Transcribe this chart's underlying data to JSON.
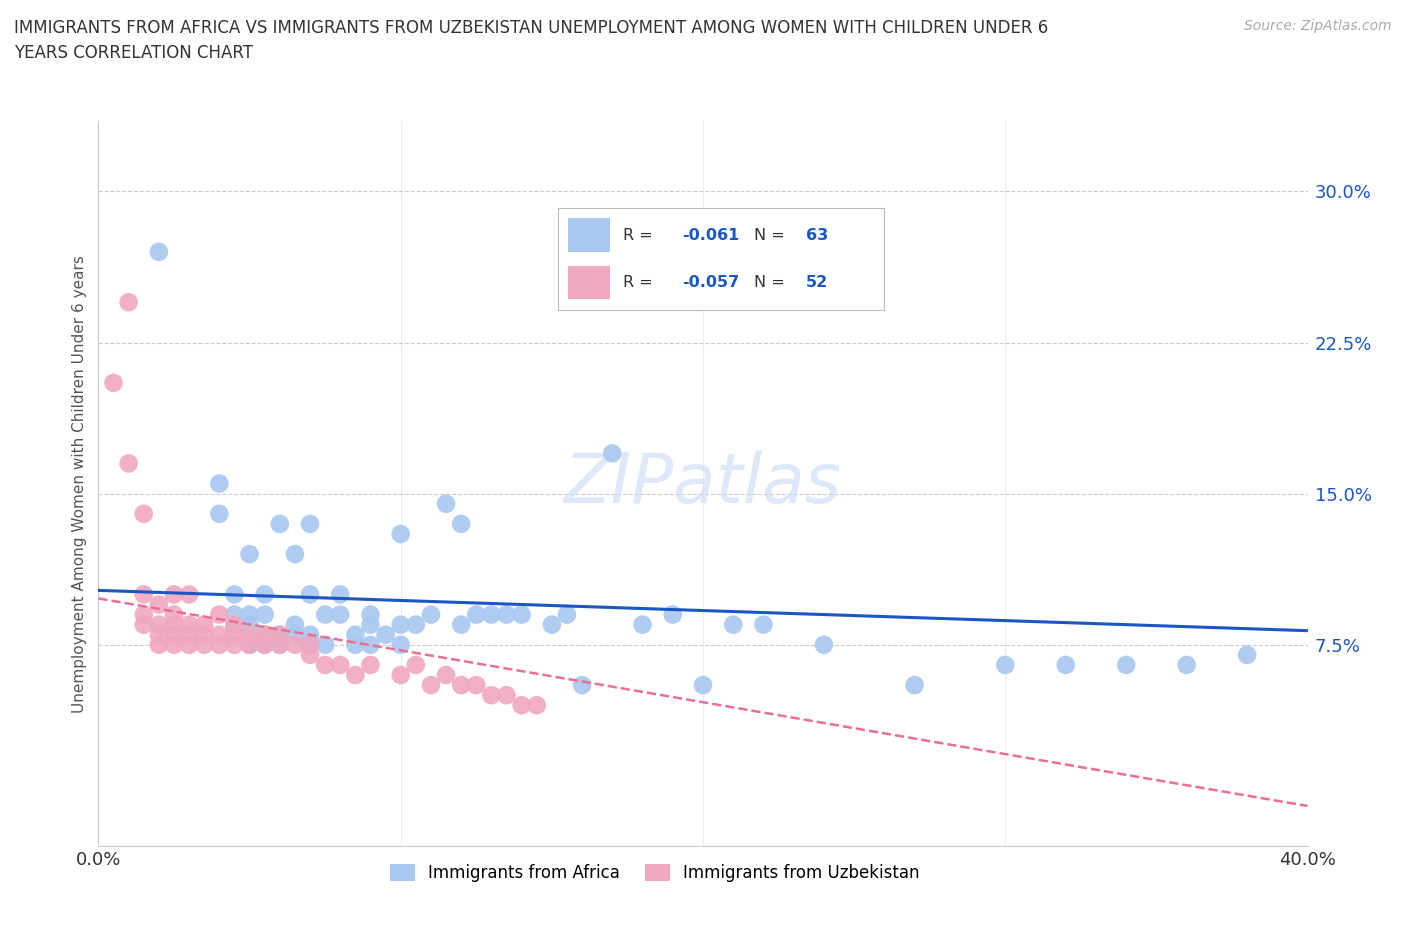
{
  "title": "IMMIGRANTS FROM AFRICA VS IMMIGRANTS FROM UZBEKISTAN UNEMPLOYMENT AMONG WOMEN WITH CHILDREN UNDER 6\nYEARS CORRELATION CHART",
  "source": "Source: ZipAtlas.com",
  "ylabel": "Unemployment Among Women with Children Under 6 years",
  "yticks": [
    0.075,
    0.15,
    0.225,
    0.3
  ],
  "ytick_labels": [
    "7.5%",
    "15.0%",
    "22.5%",
    "30.0%"
  ],
  "xlim": [
    0.0,
    0.4
  ],
  "ylim": [
    -0.025,
    0.335
  ],
  "africa_color": "#a8c8f0",
  "uzbekistan_color": "#f0a8c0",
  "africa_trend_color": "#1a56c4",
  "uzbekistan_trend_color": "#e87090",
  "watermark": "ZIPatlas",
  "africa_x": [
    0.02,
    0.04,
    0.04,
    0.045,
    0.045,
    0.045,
    0.05,
    0.05,
    0.05,
    0.05,
    0.05,
    0.055,
    0.055,
    0.055,
    0.055,
    0.06,
    0.06,
    0.06,
    0.065,
    0.065,
    0.065,
    0.07,
    0.07,
    0.07,
    0.07,
    0.075,
    0.075,
    0.08,
    0.08,
    0.085,
    0.085,
    0.09,
    0.09,
    0.09,
    0.095,
    0.1,
    0.1,
    0.1,
    0.105,
    0.11,
    0.115,
    0.12,
    0.12,
    0.125,
    0.13,
    0.135,
    0.14,
    0.15,
    0.155,
    0.16,
    0.17,
    0.18,
    0.19,
    0.2,
    0.21,
    0.22,
    0.24,
    0.27,
    0.3,
    0.32,
    0.34,
    0.36,
    0.38
  ],
  "africa_y": [
    0.27,
    0.14,
    0.155,
    0.085,
    0.09,
    0.1,
    0.075,
    0.08,
    0.085,
    0.09,
    0.12,
    0.075,
    0.08,
    0.09,
    0.1,
    0.075,
    0.08,
    0.135,
    0.08,
    0.085,
    0.12,
    0.075,
    0.08,
    0.1,
    0.135,
    0.075,
    0.09,
    0.09,
    0.1,
    0.075,
    0.08,
    0.075,
    0.085,
    0.09,
    0.08,
    0.075,
    0.085,
    0.13,
    0.085,
    0.09,
    0.145,
    0.085,
    0.135,
    0.09,
    0.09,
    0.09,
    0.09,
    0.085,
    0.09,
    0.055,
    0.17,
    0.085,
    0.09,
    0.055,
    0.085,
    0.085,
    0.075,
    0.055,
    0.065,
    0.065,
    0.065,
    0.065,
    0.07
  ],
  "uzbekistan_x": [
    0.005,
    0.01,
    0.01,
    0.015,
    0.015,
    0.015,
    0.015,
    0.02,
    0.02,
    0.02,
    0.02,
    0.025,
    0.025,
    0.025,
    0.025,
    0.025,
    0.03,
    0.03,
    0.03,
    0.03,
    0.035,
    0.035,
    0.035,
    0.04,
    0.04,
    0.04,
    0.045,
    0.045,
    0.045,
    0.05,
    0.05,
    0.055,
    0.055,
    0.06,
    0.06,
    0.065,
    0.07,
    0.07,
    0.075,
    0.08,
    0.085,
    0.09,
    0.1,
    0.105,
    0.11,
    0.115,
    0.12,
    0.125,
    0.13,
    0.135,
    0.14,
    0.145
  ],
  "uzbekistan_y": [
    0.205,
    0.245,
    0.165,
    0.085,
    0.09,
    0.1,
    0.14,
    0.075,
    0.08,
    0.085,
    0.095,
    0.075,
    0.08,
    0.085,
    0.09,
    0.1,
    0.075,
    0.08,
    0.085,
    0.1,
    0.075,
    0.08,
    0.085,
    0.075,
    0.08,
    0.09,
    0.075,
    0.08,
    0.085,
    0.075,
    0.08,
    0.075,
    0.08,
    0.075,
    0.08,
    0.075,
    0.07,
    0.075,
    0.065,
    0.065,
    0.06,
    0.065,
    0.06,
    0.065,
    0.055,
    0.06,
    0.055,
    0.055,
    0.05,
    0.05,
    0.045,
    0.045
  ],
  "africa_trend_x0": 0.0,
  "africa_trend_x1": 0.4,
  "africa_trend_y0": 0.102,
  "africa_trend_y1": 0.082,
  "uzbekistan_trend_x0": 0.0,
  "uzbekistan_trend_x1": 0.4,
  "uzbekistan_trend_y0": 0.098,
  "uzbekistan_trend_y1": -0.005
}
